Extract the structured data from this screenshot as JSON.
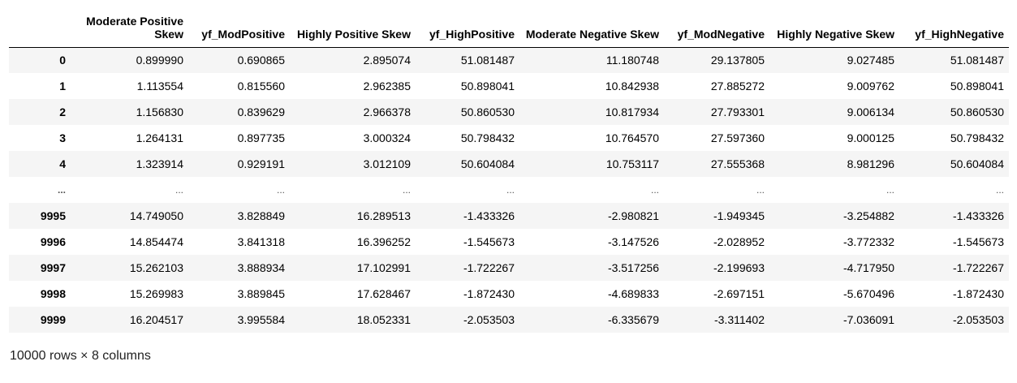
{
  "table": {
    "columns": [
      "",
      "Moderate Positive Skew",
      "yf_ModPositive",
      "Highly Positive Skew",
      "yf_HighPositive",
      "Moderate Negative Skew",
      "yf_ModNegative",
      "Highly Negative Skew",
      "yf_HighNegative"
    ],
    "rows": [
      [
        "0",
        "0.899990",
        "0.690865",
        "2.895074",
        "51.081487",
        "11.180748",
        "29.137805",
        "9.027485",
        "51.081487"
      ],
      [
        "1",
        "1.113554",
        "0.815560",
        "2.962385",
        "50.898041",
        "10.842938",
        "27.885272",
        "9.009762",
        "50.898041"
      ],
      [
        "2",
        "1.156830",
        "0.839629",
        "2.966378",
        "50.860530",
        "10.817934",
        "27.793301",
        "9.006134",
        "50.860530"
      ],
      [
        "3",
        "1.264131",
        "0.897735",
        "3.000324",
        "50.798432",
        "10.764570",
        "27.597360",
        "9.000125",
        "50.798432"
      ],
      [
        "4",
        "1.323914",
        "0.929191",
        "3.012109",
        "50.604084",
        "10.753117",
        "27.555368",
        "8.981296",
        "50.604084"
      ],
      [
        "...",
        "...",
        "...",
        "...",
        "...",
        "...",
        "...",
        "...",
        "..."
      ],
      [
        "9995",
        "14.749050",
        "3.828849",
        "16.289513",
        "-1.433326",
        "-2.980821",
        "-1.949345",
        "-3.254882",
        "-1.433326"
      ],
      [
        "9996",
        "14.854474",
        "3.841318",
        "16.396252",
        "-1.545673",
        "-3.147526",
        "-2.028952",
        "-3.772332",
        "-1.545673"
      ],
      [
        "9997",
        "15.262103",
        "3.888934",
        "17.102991",
        "-1.722267",
        "-3.517256",
        "-2.199693",
        "-4.717950",
        "-1.722267"
      ],
      [
        "9998",
        "15.269983",
        "3.889845",
        "17.628467",
        "-1.872430",
        "-4.689833",
        "-2.697151",
        "-5.670496",
        "-1.872430"
      ],
      [
        "9999",
        "16.204517",
        "3.995584",
        "18.052331",
        "-2.053503",
        "-6.335679",
        "-3.311402",
        "-7.036091",
        "-2.053503"
      ]
    ]
  },
  "footer": {
    "shape_text": "10000 rows × 8 columns"
  }
}
